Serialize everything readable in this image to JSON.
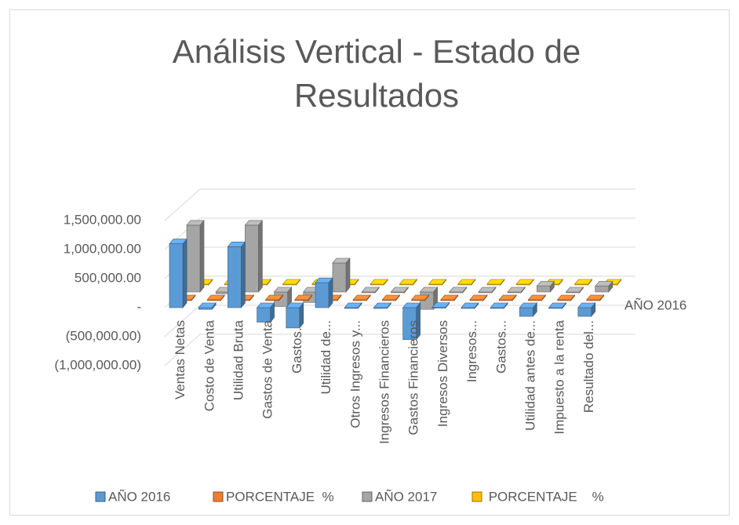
{
  "chart_data": {
    "type": "bar3d",
    "title": "Análisis Vertical -  Estado de Resultados",
    "z_axis_label": "AÑO 2016",
    "categories": [
      "Ventas Netas",
      "Costo de Venta",
      "Utilidad Bruta",
      "Gastos de Venta",
      "Gastos...",
      "Utilidad de...",
      "Otros Ingresos y...",
      "Ingresos Financieros",
      "Gastos Financieros",
      "Ingresos Diversos",
      "Ingresos...",
      "Gastos...",
      "Utilidad antes de...",
      "Impuesto a la renta",
      "Resultado del..."
    ],
    "series": [
      {
        "name": "AÑO 2016",
        "color": "#5b9bd5",
        "values": [
          1100000,
          -30000,
          1050000,
          -250000,
          -350000,
          430000,
          -5000,
          0,
          -550000,
          5000,
          -5000,
          -5000,
          -150000,
          -10000,
          -150000
        ]
      },
      {
        "name": "PORCENTAJE  %",
        "color": "#ed7d31",
        "values": [
          100,
          -65,
          35,
          -25,
          -30,
          40,
          0,
          0,
          -50,
          0,
          0,
          0,
          -15,
          -1,
          -14
        ]
      },
      {
        "name": "AÑO 2017",
        "color": "#a5a5a5",
        "values": [
          1150000,
          -30000,
          1150000,
          -250000,
          -180000,
          500000,
          0,
          0,
          -300000,
          0,
          0,
          0,
          100000,
          0,
          100000
        ]
      },
      {
        "name": " PORCENTAJE    %",
        "color": "#ffc000",
        "values": [
          100,
          -55,
          45,
          -20,
          -15,
          45,
          0,
          0,
          -25,
          0,
          0,
          0,
          10,
          0,
          8
        ]
      }
    ],
    "ylim": [
      -1000000,
      1500000
    ],
    "yticks": [
      {
        "value": -1000000,
        "label": "(1,000,000.00)"
      },
      {
        "value": -500000,
        "label": "(500,000.00)"
      },
      {
        "value": 0,
        "label": "-"
      },
      {
        "value": 500000,
        "label": "500,000.00"
      },
      {
        "value": 1000000,
        "label": "1,000,000.00"
      },
      {
        "value": 1500000,
        "label": "1,500,000.00"
      }
    ],
    "grid": true
  }
}
